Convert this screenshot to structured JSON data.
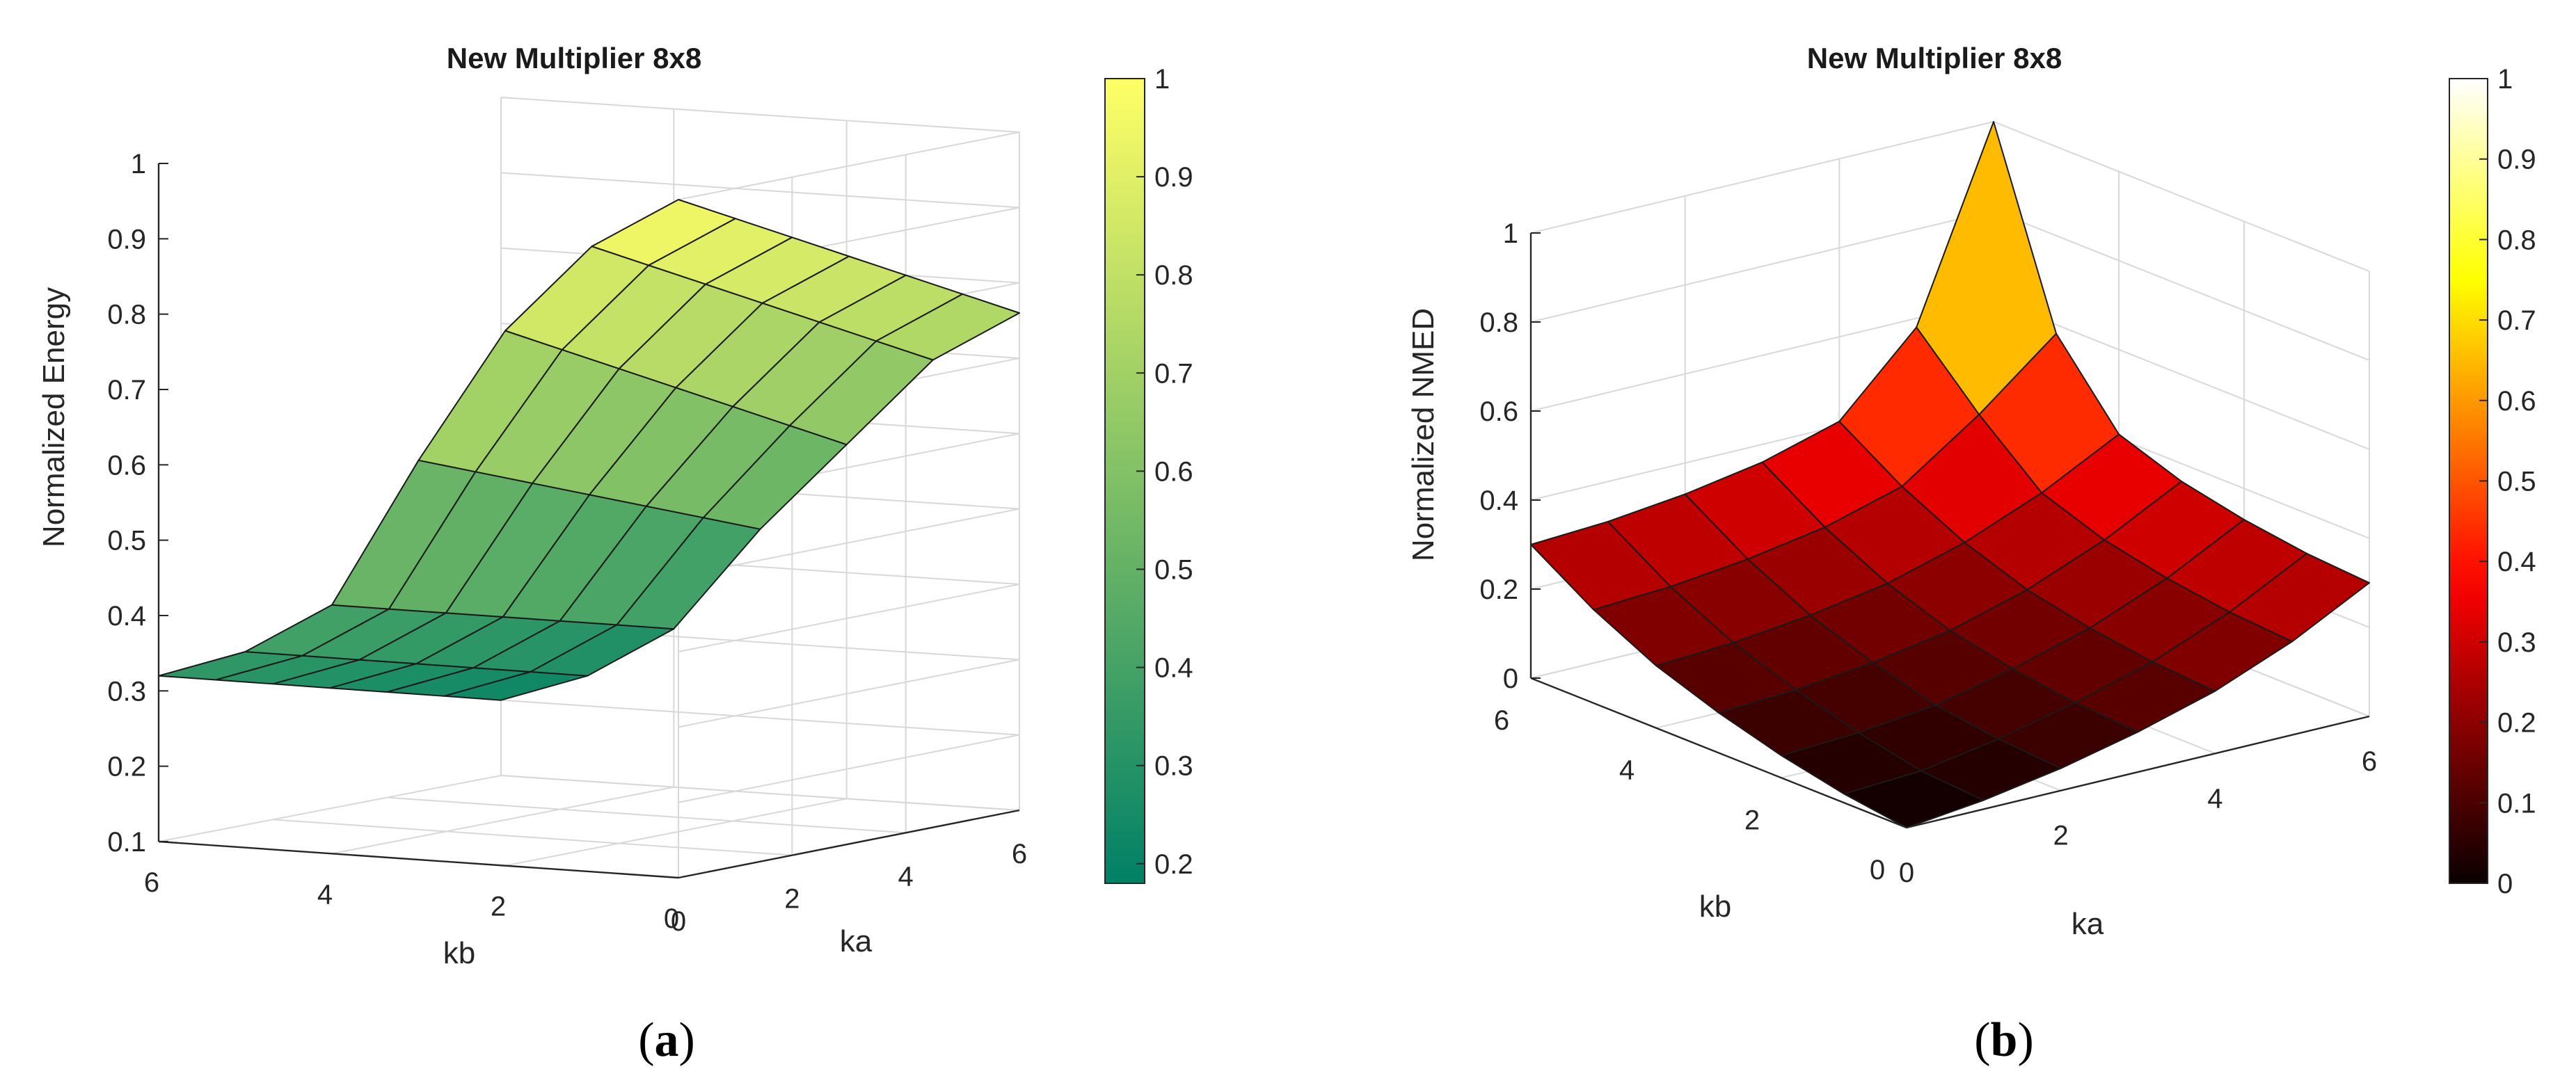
{
  "chart_data": [
    {
      "type": "surface3d",
      "panel": "(a)",
      "title": "New Multiplier 8x8",
      "xlabel": "ka",
      "ylabel": "kb",
      "zlabel": "Normalized Energy",
      "colormap": "summer",
      "xlim": [
        0,
        6
      ],
      "ylim": [
        0,
        6
      ],
      "zlim": [
        0.1,
        1
      ],
      "ka": [
        0,
        1,
        2,
        3,
        4,
        5,
        6
      ],
      "kb": [
        0,
        1,
        2,
        3,
        4,
        5,
        6
      ],
      "x_ticks": [
        "0",
        "2",
        "4",
        "6"
      ],
      "y_ticks": [
        "6",
        "4",
        "2",
        "0"
      ],
      "z_ticks": [
        "0.1",
        "0.2",
        "0.3",
        "0.4",
        "0.5",
        "0.6",
        "0.7",
        "0.8",
        "0.9",
        "1"
      ],
      "colorbar": {
        "range": [
          0.18,
          1.0
        ],
        "ticks": [
          "0.2",
          "0.3",
          "0.4",
          "0.5",
          "0.6",
          "0.7",
          "0.8",
          "0.9",
          "1"
        ]
      },
      "z_rows_by_kb": [
        [
          1.0,
          0.96,
          0.92,
          0.88,
          0.84,
          0.8,
          0.76
        ],
        [
          0.93,
          0.89,
          0.85,
          0.81,
          0.77,
          0.73,
          0.69
        ],
        [
          0.81,
          0.77,
          0.73,
          0.69,
          0.65,
          0.61,
          0.57
        ],
        [
          0.63,
          0.6,
          0.57,
          0.54,
          0.51,
          0.48,
          0.45
        ],
        [
          0.43,
          0.41,
          0.39,
          0.37,
          0.35,
          0.33,
          0.31
        ],
        [
          0.36,
          0.34,
          0.32,
          0.3,
          0.28,
          0.26,
          0.24
        ],
        [
          0.32,
          0.3,
          0.28,
          0.26,
          0.24,
          0.22,
          0.2
        ]
      ]
    },
    {
      "type": "surface3d",
      "panel": "(b)",
      "title": "New Multiplier 8x8",
      "xlabel": "ka",
      "ylabel": "kb",
      "zlabel": "Normalized NMED",
      "colormap": "hot",
      "xlim": [
        0,
        6
      ],
      "ylim": [
        0,
        6
      ],
      "zlim": [
        0,
        1
      ],
      "ka": [
        0,
        1,
        2,
        3,
        4,
        5,
        6
      ],
      "kb": [
        0,
        1,
        2,
        3,
        4,
        5,
        6
      ],
      "x_ticks": [
        "0",
        "2",
        "4",
        "6"
      ],
      "y_ticks": [
        "0",
        "2",
        "4",
        "6"
      ],
      "z_ticks": [
        "0",
        "0.2",
        "0.4",
        "0.6",
        "0.8",
        "1"
      ],
      "colorbar": {
        "range": [
          0,
          1
        ],
        "ticks": [
          "0",
          "0.1",
          "0.2",
          "0.3",
          "0.4",
          "0.5",
          "0.6",
          "0.7",
          "0.8",
          "0.9",
          "1"
        ]
      },
      "z_rows_by_kb": [
        [
          0.0,
          0.02,
          0.05,
          0.09,
          0.14,
          0.21,
          0.3
        ],
        [
          0.02,
          0.03,
          0.06,
          0.1,
          0.15,
          0.22,
          0.31
        ],
        [
          0.05,
          0.06,
          0.08,
          0.12,
          0.17,
          0.24,
          0.33
        ],
        [
          0.09,
          0.1,
          0.12,
          0.15,
          0.2,
          0.27,
          0.36
        ],
        [
          0.14,
          0.15,
          0.17,
          0.2,
          0.25,
          0.32,
          0.41
        ],
        [
          0.21,
          0.22,
          0.24,
          0.27,
          0.32,
          0.44,
          0.58
        ],
        [
          0.3,
          0.31,
          0.33,
          0.36,
          0.41,
          0.58,
          1.0
        ]
      ]
    }
  ]
}
